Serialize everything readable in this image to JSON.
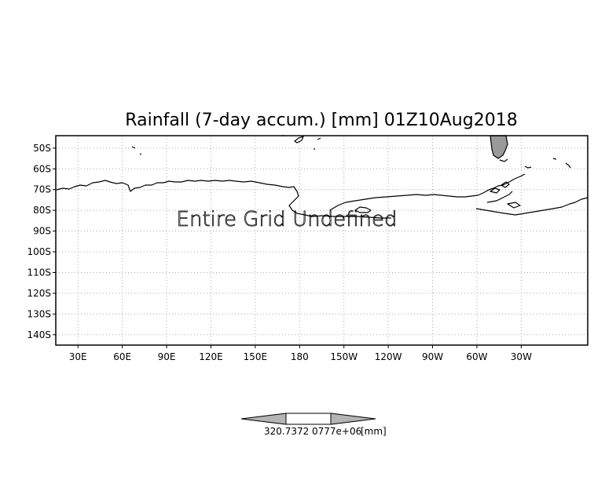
{
  "title": "Rainfall (7-day accum.) [mm] 01Z10Aug2018",
  "message": "Entire Grid Undefined",
  "map": {
    "lon_range": [
      15,
      375
    ],
    "lat_range": [
      -145,
      -44
    ],
    "x_ticks": [
      {
        "lon": 30,
        "label": "30E"
      },
      {
        "lon": 60,
        "label": "60E"
      },
      {
        "lon": 90,
        "label": "90E"
      },
      {
        "lon": 120,
        "label": "120E"
      },
      {
        "lon": 150,
        "label": "150E"
      },
      {
        "lon": 180,
        "label": "180"
      },
      {
        "lon": 210,
        "label": "150W"
      },
      {
        "lon": 240,
        "label": "120W"
      },
      {
        "lon": 270,
        "label": "90W"
      },
      {
        "lon": 300,
        "label": "60W"
      },
      {
        "lon": 330,
        "label": "30W"
      }
    ],
    "y_ticks": [
      {
        "lat": -50,
        "label": "50S"
      },
      {
        "lat": -60,
        "label": "60S"
      },
      {
        "lat": -70,
        "label": "70S"
      },
      {
        "lat": -80,
        "label": "80S"
      },
      {
        "lat": -90,
        "label": "90S"
      },
      {
        "lat": -100,
        "label": "100S"
      },
      {
        "lat": -110,
        "label": "110S"
      },
      {
        "lat": -120,
        "label": "120S"
      },
      {
        "lat": -130,
        "label": "130S"
      },
      {
        "lat": -140,
        "label": "140S"
      }
    ],
    "grid": true,
    "land_fill_color": "#999999"
  },
  "colorbar": {
    "labels": [
      "320.7372",
      "0777e+06",
      "[mm]"
    ],
    "fill_colors": [
      "#b4b4b4",
      "#ffffff",
      "#b4b4b4"
    ]
  }
}
